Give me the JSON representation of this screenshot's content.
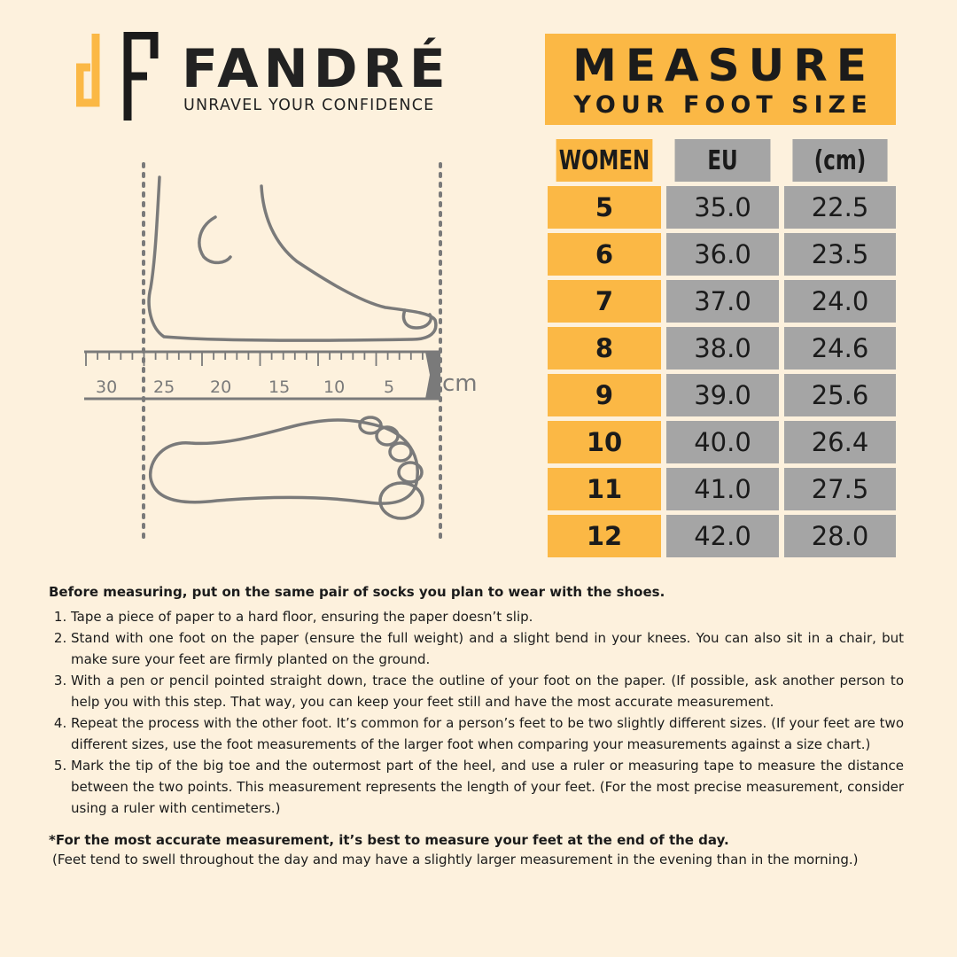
{
  "brand": {
    "name": "FANDRÉ",
    "tagline": "UNRAVEL YOUR CONFIDENCE",
    "logo_monogram": "dF"
  },
  "title": {
    "line1": "MEASURE",
    "line2": "YOUR FOOT SIZE"
  },
  "colors": {
    "background": "#fdf1dd",
    "accent": "#fbb845",
    "cell_grey": "#a5a5a5",
    "text": "#1b1b1b"
  },
  "size_table": {
    "headers": [
      "WOMEN",
      "EU",
      "(cm)"
    ],
    "rows": [
      [
        "5",
        "35.0",
        "22.5"
      ],
      [
        "6",
        "36.0",
        "23.5"
      ],
      [
        "7",
        "37.0",
        "24.0"
      ],
      [
        "8",
        "38.0",
        "24.6"
      ],
      [
        "9",
        "39.0",
        "25.6"
      ],
      [
        "10",
        "40.0",
        "26.4"
      ],
      [
        "11",
        "41.0",
        "27.5"
      ],
      [
        "12",
        "42.0",
        "28.0"
      ]
    ]
  },
  "ruler": {
    "labels": [
      "30",
      "25",
      "20",
      "15",
      "10",
      "5"
    ],
    "unit": "cm"
  },
  "instructions": {
    "intro": "Before measuring, put on the same pair of socks you plan to wear with the shoes.",
    "steps": [
      "Tape a piece of paper to a hard floor, ensuring the paper doesn’t slip.",
      "Stand with one foot on the paper (ensure the full weight) and a slight bend in your knees. You can also sit in a chair, but make sure your feet are firmly planted on the ground.",
      "With a pen or pencil pointed straight down, trace the outline of your foot on the paper. (If possible, ask another person to help you with this step. That way, you can keep your feet still and have the most accurate measurement.",
      "Repeat the process with the other foot. It’s common for a person’s feet to be two slightly different sizes. (If your feet are two different sizes, use the foot measurements of the larger foot when comparing your measurements against a size chart.)",
      "Mark the tip of the big toe and the outermost part of the heel, and use a ruler or measuring tape to measure the distance between the two points. This measurement represents the length of your feet. (For the most precise measurement, consider using a ruler with centimeters.)"
    ],
    "note_bold": "*For the most accurate measurement, it’s best to measure your feet at the end of the day.",
    "note": "(Feet tend to swell throughout the day and may have a slightly larger measurement in the evening than in the morning.)"
  }
}
